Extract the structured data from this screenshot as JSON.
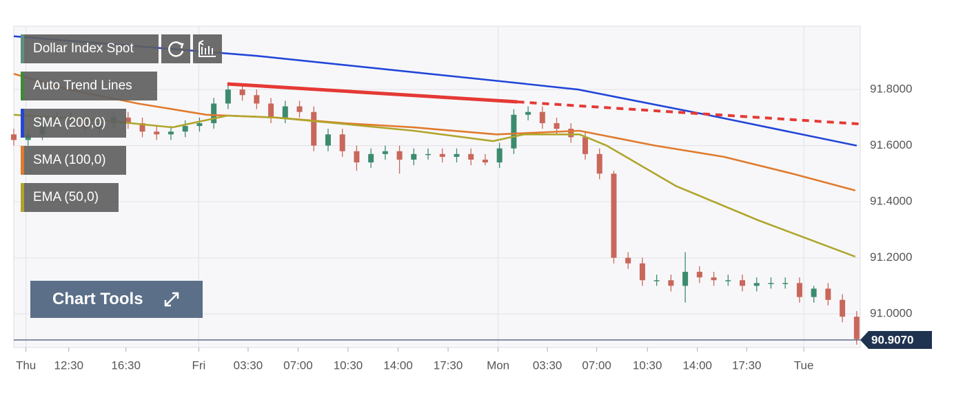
{
  "chart_data": {
    "type": "candlestick",
    "instrument": "Dollar Index Spot",
    "tools": [
      "Auto Trend Lines"
    ],
    "button": "Chart Tools",
    "xlim": [
      0,
      118.5
    ],
    "xticks": [
      {
        "value": 1.7,
        "label": "Thu"
      },
      {
        "value": 7.7,
        "label": "12:30"
      },
      {
        "value": 15.7,
        "label": "16:30"
      },
      {
        "value": 25.9,
        "label": "Fri"
      },
      {
        "value": 32.8,
        "label": "03:30"
      },
      {
        "value": 39.8,
        "label": "07:00"
      },
      {
        "value": 46.8,
        "label": "10:30"
      },
      {
        "value": 53.8,
        "label": "14:00"
      },
      {
        "value": 60.8,
        "label": "17:30"
      },
      {
        "value": 67.8,
        "label": "Mon"
      },
      {
        "value": 74.7,
        "label": "03:30"
      },
      {
        "value": 81.6,
        "label": "07:00"
      },
      {
        "value": 88.7,
        "label": "10:30"
      },
      {
        "value": 95.7,
        "label": "14:00"
      },
      {
        "value": 102.6,
        "label": "17:30"
      },
      {
        "value": 110.6,
        "label": "Tue"
      }
    ],
    "ylim": [
      90.88,
      92.026
    ],
    "yticks": [
      {
        "value": 91.0,
        "label": "91.0000"
      },
      {
        "value": 91.2,
        "label": "91.2000"
      },
      {
        "value": 91.4,
        "label": "91.4000"
      },
      {
        "value": 91.6,
        "label": "91.6000"
      },
      {
        "value": 91.8,
        "label": "91.8000"
      }
    ],
    "grid": true,
    "up_color": "#3d8b6f",
    "down_color": "#c9675b",
    "candles": {
      "x": [
        0,
        2,
        4,
        6,
        8,
        10,
        12,
        14,
        16,
        18,
        20,
        22,
        24,
        26,
        28,
        30,
        32,
        34,
        36,
        38,
        40,
        42,
        44,
        46,
        48,
        50,
        52,
        54,
        56,
        58,
        60,
        62,
        64,
        66,
        68,
        70,
        72,
        74,
        76,
        78,
        80,
        82,
        84,
        86,
        88,
        90,
        92,
        94,
        96,
        98,
        100,
        102,
        104,
        106,
        108,
        110,
        112,
        114,
        116,
        118
      ],
      "open": [
        91.64,
        91.62,
        91.64,
        91.68,
        91.7,
        91.69,
        91.66,
        91.68,
        91.7,
        91.68,
        91.65,
        91.64,
        91.65,
        91.67,
        91.68,
        91.75,
        91.8,
        91.78,
        91.75,
        91.7,
        91.74,
        91.72,
        91.6,
        91.64,
        91.58,
        91.54,
        91.57,
        91.58,
        91.55,
        91.57,
        91.57,
        91.56,
        91.57,
        91.55,
        91.54,
        91.59,
        91.71,
        91.72,
        91.68,
        91.66,
        91.63,
        91.57,
        91.5,
        91.2,
        91.18,
        91.12,
        91.12,
        91.1,
        91.15,
        91.13,
        91.12,
        91.12,
        91.1,
        91.11,
        91.11,
        91.11,
        91.06,
        91.09,
        91.05,
        90.99
      ],
      "high": [
        91.66,
        91.66,
        91.7,
        91.72,
        91.72,
        91.71,
        91.7,
        91.72,
        91.72,
        91.7,
        91.67,
        91.67,
        91.69,
        91.7,
        91.77,
        91.82,
        91.82,
        91.8,
        91.77,
        91.76,
        91.76,
        91.74,
        91.66,
        91.66,
        91.6,
        91.59,
        91.6,
        91.6,
        91.59,
        91.59,
        91.59,
        91.59,
        91.59,
        91.57,
        91.61,
        91.73,
        91.74,
        91.74,
        91.7,
        91.68,
        91.65,
        91.59,
        91.51,
        91.22,
        91.2,
        91.14,
        91.14,
        91.22,
        91.17,
        91.15,
        91.14,
        91.14,
        91.13,
        91.13,
        91.13,
        91.13,
        91.1,
        91.11,
        91.07,
        91.01
      ],
      "low": [
        91.6,
        91.6,
        91.62,
        91.66,
        91.67,
        91.64,
        91.64,
        91.66,
        91.66,
        91.63,
        91.62,
        91.62,
        91.63,
        91.65,
        91.66,
        91.73,
        91.76,
        91.73,
        91.68,
        91.68,
        91.7,
        91.58,
        91.58,
        91.56,
        91.51,
        91.52,
        91.55,
        91.5,
        91.53,
        91.55,
        91.54,
        91.54,
        91.53,
        91.53,
        91.52,
        91.57,
        91.69,
        91.66,
        91.64,
        91.61,
        91.55,
        91.48,
        91.18,
        91.16,
        91.1,
        91.1,
        91.08,
        91.04,
        91.11,
        91.1,
        91.1,
        91.08,
        91.08,
        91.09,
        91.09,
        91.04,
        91.04,
        91.03,
        90.97,
        90.89
      ],
      "close": [
        91.62,
        91.64,
        91.68,
        91.7,
        91.69,
        91.66,
        91.68,
        91.7,
        91.68,
        91.65,
        91.64,
        91.65,
        91.67,
        91.68,
        91.75,
        91.8,
        91.78,
        91.75,
        91.7,
        91.74,
        91.72,
        91.6,
        91.64,
        91.58,
        91.54,
        91.57,
        91.58,
        91.55,
        91.57,
        91.57,
        91.56,
        91.57,
        91.55,
        91.54,
        91.59,
        91.71,
        91.72,
        91.68,
        91.66,
        91.63,
        91.57,
        91.5,
        91.2,
        91.18,
        91.12,
        91.12,
        91.1,
        91.15,
        91.13,
        91.12,
        91.12,
        91.1,
        91.11,
        91.11,
        91.11,
        91.06,
        91.09,
        91.05,
        90.99,
        90.91
      ]
    },
    "series": [
      {
        "name": "SMA (200,0)",
        "color": "#2246d8",
        "x": [
          0,
          34,
          68,
          79,
          97,
          118
        ],
        "values": [
          91.99,
          91.92,
          91.83,
          91.8,
          91.71,
          91.6
        ]
      },
      {
        "name": "SMA (100,0)",
        "color": "#e07a2c",
        "x": [
          0,
          7.7,
          17.4,
          27,
          36.7,
          46.3,
          56,
          67.6,
          79.2,
          89.8,
          99.4,
          109,
          117.8
        ],
        "values": [
          91.856,
          91.8,
          91.75,
          91.71,
          91.7,
          91.68,
          91.665,
          91.64,
          91.653,
          91.6,
          91.56,
          91.5,
          91.44
        ]
      },
      {
        "name": "EMA (50,0)",
        "color": "#b0a52c",
        "x": [
          0,
          12.5,
          22.2,
          29.9,
          36.7,
          46.3,
          56,
          67.1,
          71.4,
          79.2,
          83,
          92.7,
          104.2,
          117.8
        ],
        "values": [
          91.71,
          91.69,
          91.665,
          91.707,
          91.7,
          91.677,
          91.653,
          91.616,
          91.64,
          91.64,
          91.6,
          91.456,
          91.334,
          91.204
        ]
      }
    ],
    "trend_line": {
      "color": "#e53935",
      "x": [
        29.9,
        70.5,
        118.5
      ],
      "values": [
        91.82,
        91.756,
        91.677
      ]
    },
    "current_price": {
      "value": 90.907,
      "label": "90.9070"
    }
  }
}
